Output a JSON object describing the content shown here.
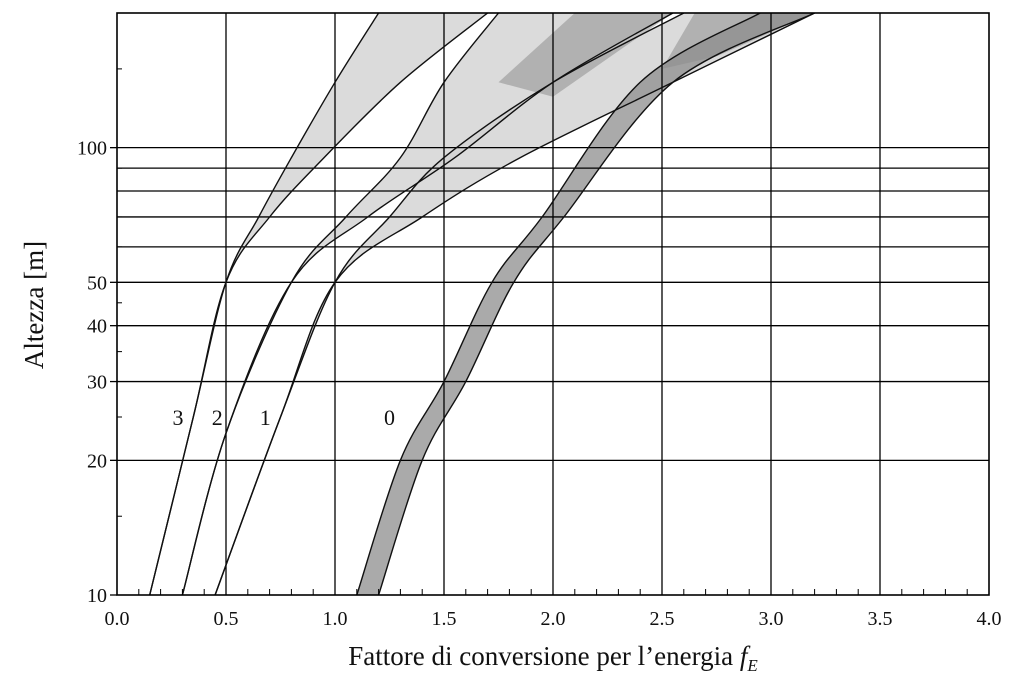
{
  "chart_data": {
    "type": "line",
    "title": "",
    "xlabel": "Fattore di conversione per l’energia",
    "xlabel_symbol": "f",
    "xlabel_subscript": "E",
    "ylabel": "Altezza [m]",
    "x_scale": "linear",
    "y_scale": "log",
    "xlim": [
      0.0,
      4.0
    ],
    "ylim": [
      10,
      200
    ],
    "x_ticks": [
      "0.0",
      "0.5",
      "1.0",
      "1.5",
      "2.0",
      "2.5",
      "3.0",
      "3.5",
      "4.0"
    ],
    "y_ticks": [
      "10",
      "20",
      "30",
      "40",
      "50",
      "100"
    ],
    "extra_horizontal_gridlines_m": [
      60,
      70,
      80,
      90
    ],
    "grid": true,
    "colors": {
      "line": "#111111",
      "band_light": "#d2d2d2",
      "band_dark": "#8e8e8e",
      "grid": "#000000"
    },
    "series": [
      {
        "name": "3",
        "x_lower": [
          0.15,
          0.35,
          0.5,
          0.65,
          0.8,
          1.0,
          1.2
        ],
        "x_upper": [
          0.15,
          0.35,
          0.5,
          0.7,
          0.95,
          1.3,
          1.7
        ],
        "y": [
          10,
          25,
          50,
          70,
          95,
          140,
          200
        ]
      },
      {
        "name": "2",
        "x_lower": [
          0.3,
          0.5,
          0.8,
          1.05,
          1.3,
          1.5,
          1.75
        ],
        "x_upper": [
          0.3,
          0.5,
          0.8,
          1.15,
          1.55,
          2.0,
          2.55
        ],
        "y": [
          10,
          23,
          50,
          70,
          95,
          140,
          200
        ]
      },
      {
        "name": "1",
        "x_lower": [
          0.45,
          0.75,
          1.0,
          1.25,
          1.5,
          2.0,
          2.6
        ],
        "x_upper": [
          0.45,
          0.75,
          1.0,
          1.4,
          1.85,
          2.55,
          3.2
        ],
        "y": [
          10,
          25,
          50,
          70,
          95,
          140,
          200
        ]
      },
      {
        "name": "0",
        "x_lower": [
          1.1,
          1.3,
          1.5,
          1.72,
          1.95,
          2.4,
          2.95
        ],
        "x_upper": [
          1.2,
          1.4,
          1.6,
          1.82,
          2.05,
          2.55,
          3.2
        ],
        "y": [
          10,
          20,
          30,
          50,
          70,
          140,
          200
        ]
      }
    ],
    "curve_label_positions": [
      {
        "label": "3",
        "x": 0.28,
        "y": 25
      },
      {
        "label": "2",
        "x": 0.46,
        "y": 25
      },
      {
        "label": "1",
        "x": 0.68,
        "y": 25
      },
      {
        "label": "0",
        "x": 1.25,
        "y": 25
      }
    ]
  }
}
